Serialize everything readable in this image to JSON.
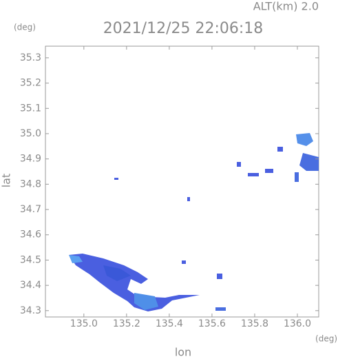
{
  "chart_data": {
    "type": "map",
    "title": "2021/12/25 22:06:18",
    "subtitle": "ALT(km) 2.0",
    "y_unit": "(deg)",
    "x_unit": "(deg)",
    "x_label": "lon",
    "y_label": "lat",
    "xlim": [
      134.82,
      136.1
    ],
    "ylim": [
      34.275,
      35.346
    ],
    "xticks": [
      {
        "value": 135.0,
        "label": "135.0"
      },
      135.2,
      135.4,
      135.6,
      135.8,
      {
        "value": 136.0,
        "label": "136.0"
      }
    ],
    "yticks": [
      34.3,
      34.4,
      34.5,
      34.6,
      34.7,
      34.8,
      34.9,
      {
        "value": 35.0,
        "label": "35.0"
      },
      35.1,
      35.2,
      35.3
    ]
  }
}
